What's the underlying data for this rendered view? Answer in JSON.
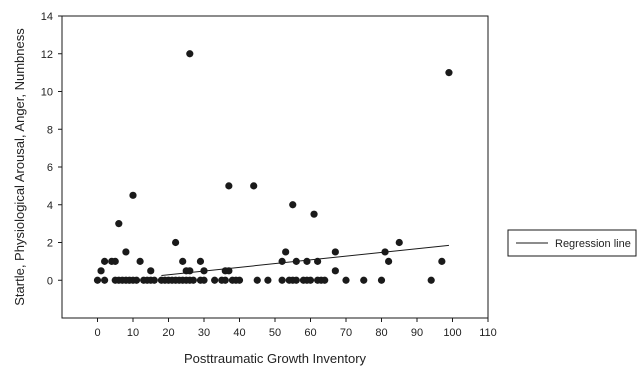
{
  "chart_data": {
    "type": "scatter",
    "xlabel": "Posttraumatic Growth Inventory",
    "ylabel": "Startle, Physiological Arousal, Anger, Numbness",
    "xlim": [
      -10,
      110
    ],
    "ylim": [
      -2,
      14
    ],
    "xticks": [
      0,
      10,
      20,
      30,
      40,
      50,
      60,
      70,
      80,
      90,
      100,
      110
    ],
    "yticks": [
      0,
      2,
      4,
      6,
      8,
      10,
      12,
      14
    ],
    "grid": false,
    "legend_position": "right",
    "series": [
      {
        "name": "",
        "marker": "filled-circle",
        "color": "#1a1a1a",
        "points": [
          [
            0,
            0
          ],
          [
            1,
            0.5
          ],
          [
            2,
            1
          ],
          [
            2,
            0
          ],
          [
            4,
            1
          ],
          [
            5,
            0
          ],
          [
            5,
            1
          ],
          [
            6,
            3
          ],
          [
            6,
            0
          ],
          [
            7,
            0
          ],
          [
            8,
            1.5
          ],
          [
            8,
            0
          ],
          [
            9,
            0
          ],
          [
            10,
            4.5
          ],
          [
            10,
            0
          ],
          [
            11,
            0
          ],
          [
            12,
            1
          ],
          [
            13,
            0
          ],
          [
            14,
            0
          ],
          [
            15,
            0.5
          ],
          [
            15,
            0
          ],
          [
            16,
            0
          ],
          [
            18,
            0
          ],
          [
            19,
            0
          ],
          [
            20,
            0
          ],
          [
            21,
            0
          ],
          [
            22,
            2
          ],
          [
            22,
            0
          ],
          [
            23,
            0
          ],
          [
            24,
            1
          ],
          [
            24,
            0
          ],
          [
            25,
            0.5
          ],
          [
            25,
            0
          ],
          [
            26,
            12
          ],
          [
            26,
            0.5
          ],
          [
            26,
            0
          ],
          [
            27,
            0
          ],
          [
            29,
            1
          ],
          [
            29,
            0
          ],
          [
            30,
            0.5
          ],
          [
            30,
            0
          ],
          [
            33,
            0
          ],
          [
            35,
            0
          ],
          [
            36,
            0.5
          ],
          [
            36,
            0
          ],
          [
            37,
            5
          ],
          [
            37,
            0.5
          ],
          [
            38,
            0
          ],
          [
            39,
            0
          ],
          [
            40,
            0
          ],
          [
            44,
            5
          ],
          [
            45,
            0
          ],
          [
            48,
            0
          ],
          [
            52,
            1
          ],
          [
            52,
            0
          ],
          [
            53,
            1.5
          ],
          [
            54,
            0
          ],
          [
            55,
            4
          ],
          [
            55,
            0
          ],
          [
            56,
            1
          ],
          [
            56,
            0
          ],
          [
            58,
            0
          ],
          [
            59,
            1
          ],
          [
            59,
            0
          ],
          [
            60,
            0
          ],
          [
            61,
            3.5
          ],
          [
            62,
            1
          ],
          [
            62,
            0
          ],
          [
            63,
            0
          ],
          [
            64,
            0
          ],
          [
            67,
            1.5
          ],
          [
            67,
            0.5
          ],
          [
            70,
            0
          ],
          [
            75,
            0
          ],
          [
            80,
            0
          ],
          [
            81,
            1.5
          ],
          [
            82,
            1
          ],
          [
            85,
            2
          ],
          [
            94,
            0
          ],
          [
            97,
            1
          ],
          [
            99,
            11
          ]
        ]
      }
    ],
    "regression_line": {
      "name": "Regression line",
      "color": "#1a1a1a",
      "x": [
        18,
        99
      ],
      "y": [
        0.25,
        1.85
      ]
    },
    "legend": [
      {
        "label": "Regression line",
        "symbol": "line"
      }
    ]
  }
}
